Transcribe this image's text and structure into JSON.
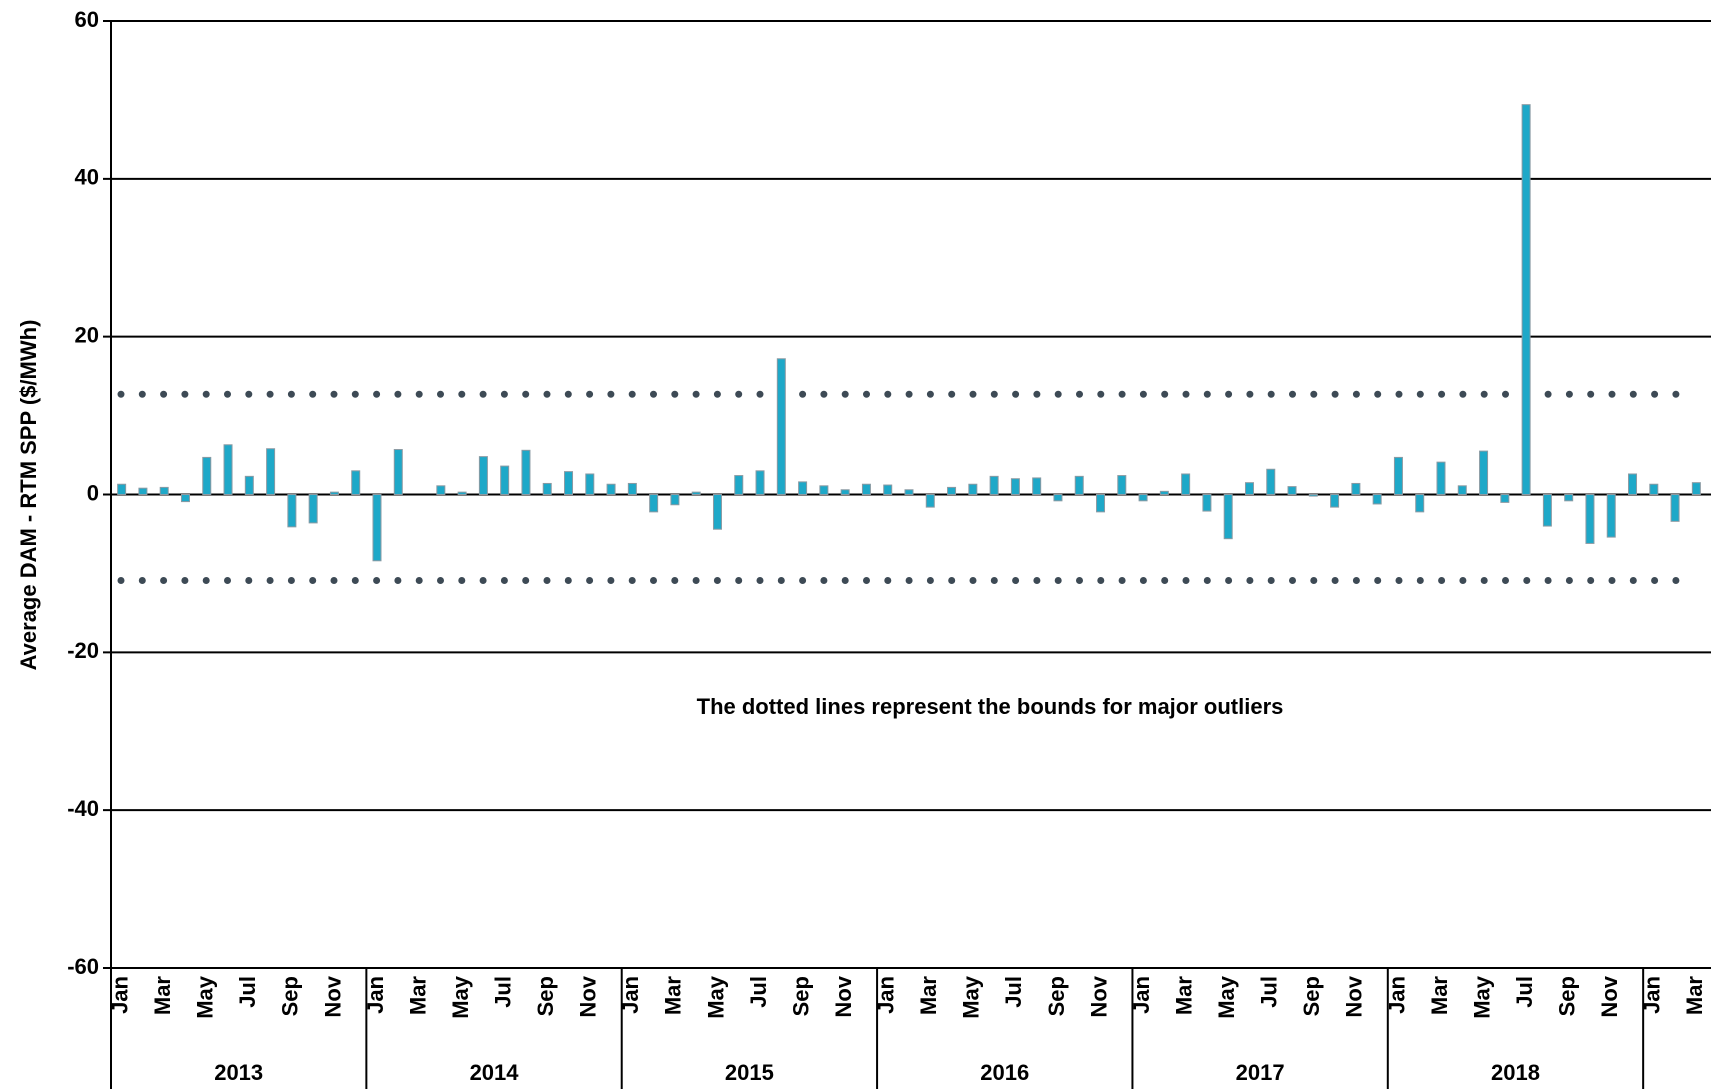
{
  "chart_data": {
    "type": "bar",
    "ylabel": "Average DAM - RTM SPP ($/MWh)",
    "annotation": "The dotted lines represent the bounds for major outliers",
    "categories": [
      "Jan",
      null,
      "Mar",
      null,
      "May",
      null,
      "Jul",
      null,
      "Sep",
      null,
      "Nov",
      null,
      "Jan",
      null,
      "Mar",
      null,
      "May",
      null,
      "Jul",
      null,
      "Sep",
      null,
      "Nov",
      null,
      "Jan",
      null,
      "Mar",
      null,
      "May",
      null,
      "Jul",
      null,
      "Sep",
      null,
      "Nov",
      null,
      "Jan",
      null,
      "Mar",
      null,
      "May",
      null,
      "Jul",
      null,
      "Sep",
      null,
      "Nov",
      null,
      "Jan",
      null,
      "Mar",
      null,
      "May",
      null,
      "Jul",
      null,
      "Sep",
      null,
      "Nov",
      null,
      "Jan",
      null,
      "Mar",
      null,
      "May",
      null,
      "Jul",
      null,
      "Sep",
      null,
      "Nov",
      null,
      "Jan",
      null,
      "Mar"
    ],
    "years": [
      "2013",
      "2014",
      "2015",
      "2016",
      "2017",
      "2018"
    ],
    "values": [
      1.3,
      0.8,
      0.9,
      -0.9,
      4.7,
      6.3,
      2.3,
      5.8,
      -4.1,
      -3.6,
      0.3,
      3.0,
      -8.4,
      5.7,
      0,
      1.1,
      0.3,
      4.8,
      3.6,
      5.6,
      1.4,
      2.9,
      2.6,
      1.3,
      1.4,
      -2.2,
      -1.3,
      0.3,
      -4.4,
      2.4,
      3.0,
      17.2,
      1.6,
      1.1,
      0.6,
      1.3,
      1.2,
      0.6,
      -1.6,
      0.9,
      1.3,
      2.3,
      2.0,
      2.1,
      -0.8,
      2.3,
      -2.2,
      2.4,
      -0.8,
      0.4,
      2.6,
      -2.1,
      -5.6,
      1.5,
      3.2,
      1.0,
      -0.2,
      -1.6,
      1.4,
      -1.2,
      4.7,
      -2.2,
      4.1,
      1.1,
      5.5,
      -1.0,
      49.4,
      -4.0,
      -0.8,
      -6.2,
      -5.4,
      2.6,
      1.3,
      -3.4,
      1.5
    ],
    "color": "#1ea8c8",
    "reference_lines": [
      12.7,
      -10.9
    ],
    "ylim": [
      -60,
      60
    ],
    "yticks": [
      -60,
      -40,
      -20,
      0,
      20,
      40,
      60
    ],
    "grid": true
  }
}
